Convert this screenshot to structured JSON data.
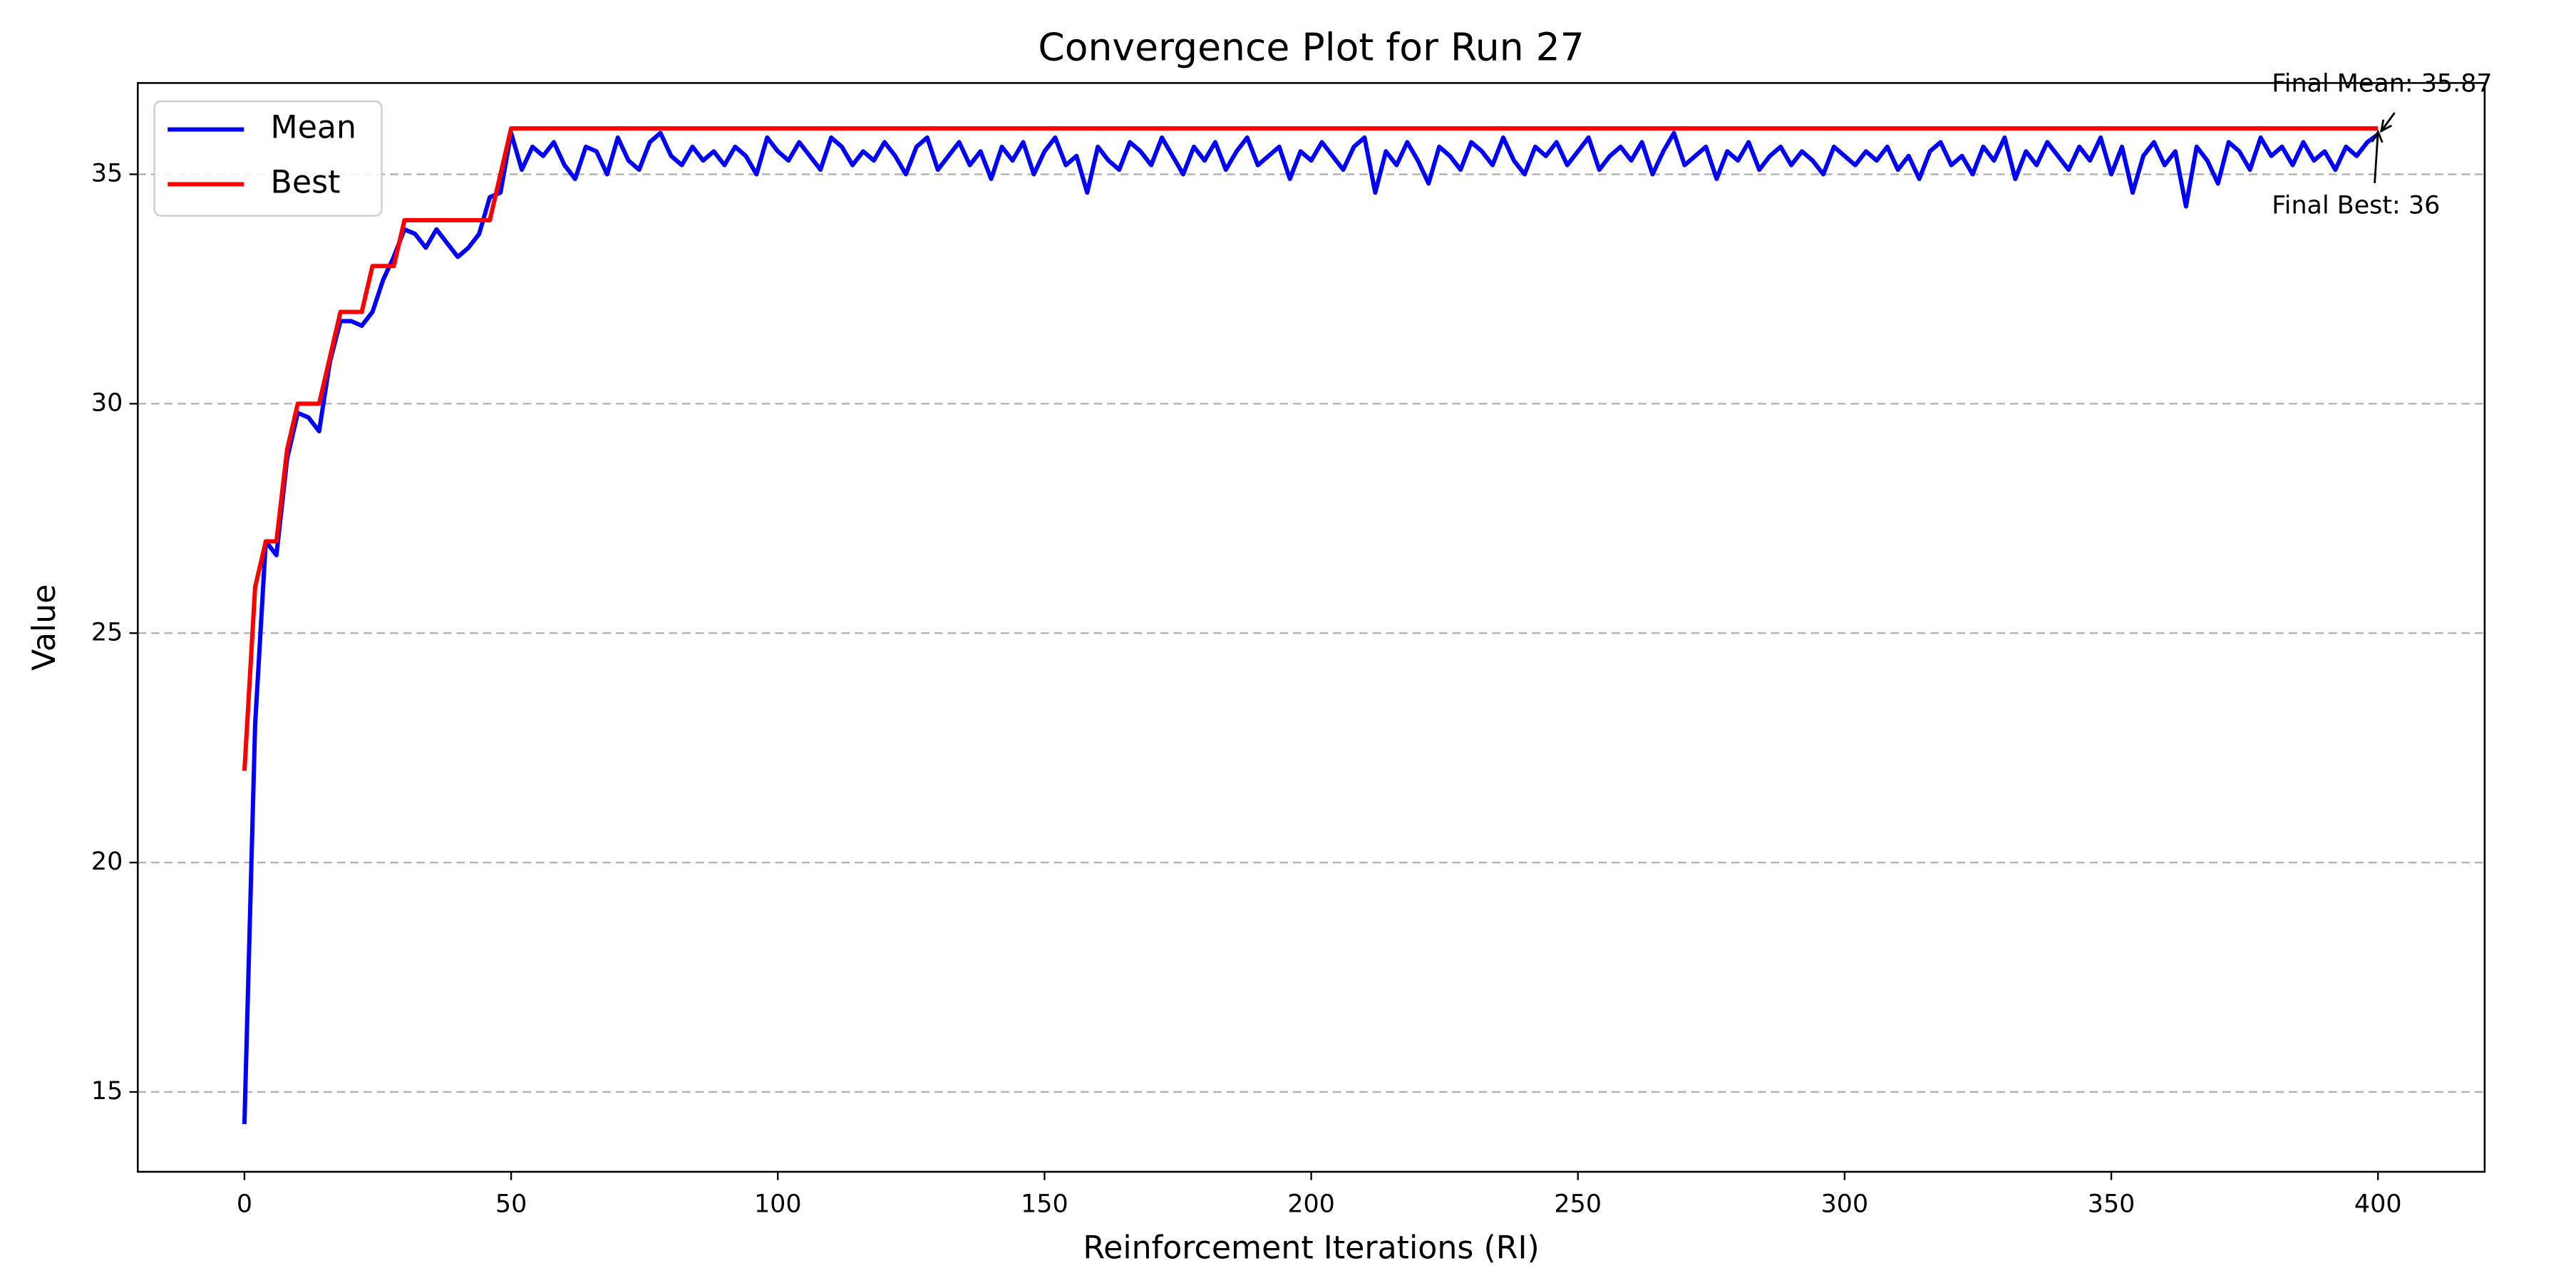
{
  "chart_data": {
    "type": "line",
    "title": "Convergence Plot for Run 27",
    "xlabel": "Reinforcement Iterations (RI)",
    "ylabel": "Value",
    "xlim": [
      -20,
      420
    ],
    "ylim": [
      13.26,
      36.99
    ],
    "xticks": [
      0,
      50,
      100,
      150,
      200,
      250,
      300,
      350,
      400
    ],
    "yticks": [
      15,
      20,
      25,
      30,
      35
    ],
    "grid": true,
    "legend": "upper left",
    "x": [
      0,
      2,
      4,
      6,
      8,
      10,
      12,
      14,
      16,
      18,
      20,
      22,
      24,
      26,
      28,
      30,
      32,
      34,
      36,
      38,
      40,
      42,
      44,
      46,
      48,
      50,
      52,
      54,
      56,
      58,
      60,
      62,
      64,
      66,
      68,
      70,
      72,
      74,
      76,
      78,
      80,
      82,
      84,
      86,
      88,
      90,
      92,
      94,
      96,
      98,
      100,
      102,
      104,
      106,
      108,
      110,
      112,
      114,
      116,
      118,
      120,
      122,
      124,
      126,
      128,
      130,
      132,
      134,
      136,
      138,
      140,
      142,
      144,
      146,
      148,
      150,
      152,
      154,
      156,
      158,
      160,
      162,
      164,
      166,
      168,
      170,
      172,
      174,
      176,
      178,
      180,
      182,
      184,
      186,
      188,
      190,
      192,
      194,
      196,
      198,
      200,
      202,
      204,
      206,
      208,
      210,
      212,
      214,
      216,
      218,
      220,
      222,
      224,
      226,
      228,
      230,
      232,
      234,
      236,
      238,
      240,
      242,
      244,
      246,
      248,
      250,
      252,
      254,
      256,
      258,
      260,
      262,
      264,
      266,
      268,
      270,
      272,
      274,
      276,
      278,
      280,
      282,
      284,
      286,
      288,
      290,
      292,
      294,
      296,
      298,
      300,
      302,
      304,
      306,
      308,
      310,
      312,
      314,
      316,
      318,
      320,
      322,
      324,
      326,
      328,
      330,
      332,
      334,
      336,
      338,
      340,
      342,
      344,
      346,
      348,
      350,
      352,
      354,
      356,
      358,
      360,
      362,
      364,
      366,
      368,
      370,
      372,
      374,
      376,
      378,
      380,
      382,
      384,
      386,
      388,
      390,
      392,
      394,
      396,
      398,
      400
    ],
    "series": [
      {
        "name": "Mean",
        "color": "#0000ff",
        "values": [
          14.3,
          23,
          27,
          26.7,
          28.8,
          29.8,
          29.7,
          29.4,
          30.9,
          31.8,
          31.8,
          31.7,
          32.0,
          32.7,
          33.2,
          33.8,
          33.7,
          33.4,
          33.8,
          33.5,
          33.2,
          33.4,
          33.7,
          34.5,
          34.6,
          35.9,
          35.1,
          35.6,
          35.4,
          35.7,
          35.2,
          34.9,
          35.6,
          35.5,
          35.0,
          35.8,
          35.3,
          35.1,
          35.7,
          35.9,
          35.4,
          35.2,
          35.6,
          35.3,
          35.5,
          35.2,
          35.6,
          35.4,
          35.0,
          35.8,
          35.5,
          35.3,
          35.7,
          35.4,
          35.1,
          35.8,
          35.6,
          35.2,
          35.5,
          35.3,
          35.7,
          35.4,
          35.0,
          35.6,
          35.8,
          35.1,
          35.4,
          35.7,
          35.2,
          35.5,
          34.9,
          35.6,
          35.3,
          35.7,
          35.0,
          35.5,
          35.8,
          35.2,
          35.4,
          34.6,
          35.6,
          35.3,
          35.1,
          35.7,
          35.5,
          35.2,
          35.8,
          35.4,
          35.0,
          35.6,
          35.3,
          35.7,
          35.1,
          35.5,
          35.8,
          35.2,
          35.4,
          35.6,
          34.9,
          35.5,
          35.3,
          35.7,
          35.4,
          35.1,
          35.6,
          35.8,
          34.6,
          35.5,
          35.2,
          35.7,
          35.3,
          34.8,
          35.6,
          35.4,
          35.1,
          35.7,
          35.5,
          35.2,
          35.8,
          35.3,
          35.0,
          35.6,
          35.4,
          35.7,
          35.2,
          35.5,
          35.8,
          35.1,
          35.4,
          35.6,
          35.3,
          35.7,
          35.0,
          35.5,
          35.9,
          35.2,
          35.4,
          35.6,
          34.9,
          35.5,
          35.3,
          35.7,
          35.1,
          35.4,
          35.6,
          35.2,
          35.5,
          35.3,
          35.0,
          35.6,
          35.4,
          35.2,
          35.5,
          35.3,
          35.6,
          35.1,
          35.4,
          34.9,
          35.5,
          35.7,
          35.2,
          35.4,
          35.0,
          35.6,
          35.3,
          35.8,
          34.9,
          35.5,
          35.2,
          35.7,
          35.4,
          35.1,
          35.6,
          35.3,
          35.8,
          35.0,
          35.6,
          34.6,
          35.4,
          35.7,
          35.2,
          35.5,
          34.3,
          35.6,
          35.3,
          34.8,
          35.7,
          35.5,
          35.1,
          35.8,
          35.4,
          35.6,
          35.2,
          35.7,
          35.3,
          35.5,
          35.1,
          35.6,
          35.4,
          35.7,
          35.87
        ]
      },
      {
        "name": "Best",
        "color": "#ff0000",
        "values": [
          22,
          26,
          27,
          27,
          29,
          30,
          30,
          30,
          31,
          32,
          32,
          32,
          33,
          33,
          33,
          34,
          34,
          34,
          34,
          34,
          34,
          34,
          34,
          34,
          35,
          36,
          36,
          36,
          36,
          36,
          36,
          36,
          36,
          36,
          36,
          36,
          36,
          36,
          36,
          36,
          36,
          36,
          36,
          36,
          36,
          36,
          36,
          36,
          36,
          36,
          36,
          36,
          36,
          36,
          36,
          36,
          36,
          36,
          36,
          36,
          36,
          36,
          36,
          36,
          36,
          36,
          36,
          36,
          36,
          36,
          36,
          36,
          36,
          36,
          36,
          36,
          36,
          36,
          36,
          36,
          36,
          36,
          36,
          36,
          36,
          36,
          36,
          36,
          36,
          36,
          36,
          36,
          36,
          36,
          36,
          36,
          36,
          36,
          36,
          36,
          36,
          36,
          36,
          36,
          36,
          36,
          36,
          36,
          36,
          36,
          36,
          36,
          36,
          36,
          36,
          36,
          36,
          36,
          36,
          36,
          36,
          36,
          36,
          36,
          36,
          36,
          36,
          36,
          36,
          36,
          36,
          36,
          36,
          36,
          36,
          36,
          36,
          36,
          36,
          36,
          36,
          36,
          36,
          36,
          36,
          36,
          36,
          36,
          36,
          36,
          36,
          36,
          36,
          36,
          36,
          36,
          36,
          36,
          36,
          36,
          36,
          36,
          36,
          36,
          36,
          36,
          36,
          36,
          36,
          36,
          36,
          36,
          36,
          36,
          36,
          36,
          36,
          36,
          36,
          36,
          36,
          36,
          36,
          36,
          36,
          36,
          36,
          36,
          36,
          36,
          36,
          36,
          36,
          36,
          36,
          36,
          36,
          36,
          36,
          36,
          36
        ]
      }
    ],
    "annotations": [
      {
        "text": "Final Mean: 35.87",
        "x": 400,
        "y": 35.87
      },
      {
        "text": "Final Best: 36",
        "x": 400,
        "y": 36
      }
    ]
  }
}
